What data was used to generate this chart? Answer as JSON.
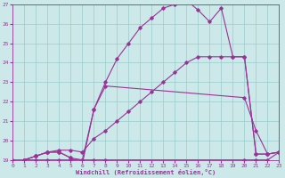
{
  "xlabel": "Windchill (Refroidissement éolien,°C)",
  "xlim": [
    0,
    23
  ],
  "ylim": [
    19,
    27
  ],
  "xticks": [
    0,
    1,
    2,
    3,
    4,
    5,
    6,
    7,
    8,
    9,
    10,
    11,
    12,
    13,
    14,
    15,
    16,
    17,
    18,
    19,
    20,
    21,
    22,
    23
  ],
  "yticks": [
    19,
    20,
    21,
    22,
    23,
    24,
    25,
    26,
    27
  ],
  "bg_color": "#cce8e8",
  "line_color": "#993399",
  "grid_color": "#99cccc",
  "line1": {
    "x": [
      0,
      1,
      2,
      3,
      4,
      5,
      6,
      7,
      8,
      20,
      21,
      22,
      23
    ],
    "y": [
      19,
      19,
      19,
      19,
      19,
      19,
      19,
      19,
      19,
      19,
      19,
      19,
      19.4
    ]
  },
  "line2": {
    "x": [
      1,
      2,
      3,
      4,
      5,
      6,
      7,
      8,
      20,
      21,
      22,
      23
    ],
    "y": [
      19,
      19.2,
      19.4,
      19.4,
      19.1,
      19.0,
      21.6,
      22.8,
      22.2,
      20.5,
      19.3,
      19.4
    ]
  },
  "line3": {
    "x": [
      1,
      2,
      3,
      4,
      5,
      6,
      7,
      8,
      9,
      10,
      11,
      12,
      13,
      14,
      15,
      16,
      17,
      18,
      19,
      20,
      21,
      22,
      23
    ],
    "y": [
      19,
      19.2,
      19.4,
      19.5,
      19.5,
      19.4,
      20.1,
      20.5,
      21.0,
      21.5,
      22.0,
      22.5,
      23.0,
      23.5,
      24.0,
      24.3,
      24.3,
      24.3,
      24.3,
      24.3,
      19.3,
      19.3,
      19.4
    ]
  },
  "line4": {
    "x": [
      1,
      2,
      3,
      4,
      5,
      6,
      7,
      8,
      9,
      10,
      11,
      12,
      13,
      14,
      15,
      16,
      17,
      18,
      19,
      20,
      21,
      22,
      23
    ],
    "y": [
      19,
      19.2,
      19.4,
      19.4,
      19.1,
      18.8,
      21.6,
      23.0,
      24.2,
      25.0,
      25.8,
      26.3,
      26.8,
      27.0,
      27.2,
      26.7,
      26.1,
      26.8,
      24.3,
      24.3,
      19.3,
      19.3,
      19.4
    ]
  }
}
